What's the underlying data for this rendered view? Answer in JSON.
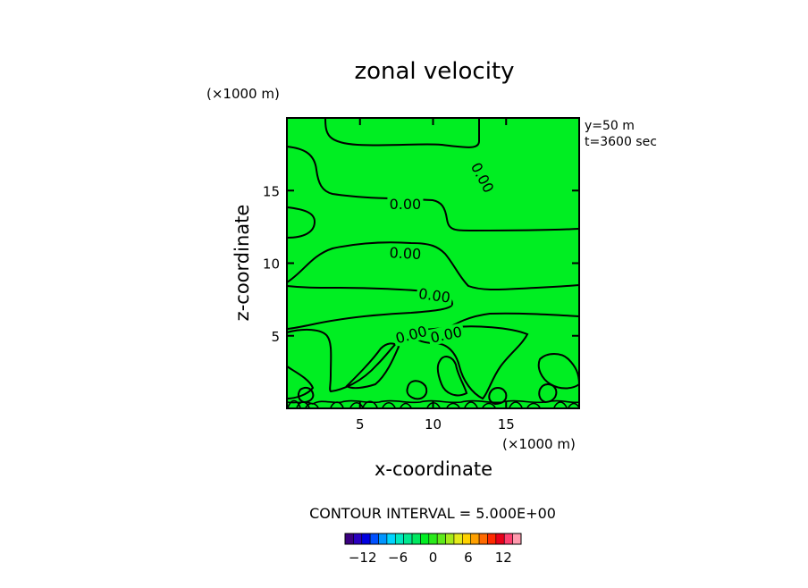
{
  "chart_data": {
    "type": "heatmap",
    "title": "zonal velocity",
    "xlabel": "x-coordinate",
    "ylabel": "z-coordinate",
    "x_unit": "(×1000 m)",
    "y_unit": "(×1000 m)",
    "xlim": [
      0,
      20
    ],
    "ylim": [
      0,
      20
    ],
    "x_ticks": [
      "5",
      "10",
      "15"
    ],
    "y_ticks": [
      "5",
      "10",
      "15"
    ],
    "annotations": [
      "y=50 m",
      "t=3600 sec"
    ],
    "fill_color": "#00ee22",
    "contour_line_color": "#000000",
    "contour_labels": [
      {
        "text": "0.00",
        "x": 13.4,
        "z": 15.9,
        "angle": 62
      },
      {
        "text": "0.00",
        "x": 8.1,
        "z": 14.1,
        "angle": 0
      },
      {
        "text": "0.00",
        "x": 8.1,
        "z": 10.7,
        "angle": 3
      },
      {
        "text": "0.00",
        "x": 10.1,
        "z": 7.8,
        "angle": 8
      },
      {
        "text": "0.00",
        "x": 8.5,
        "z": 5.1,
        "angle": -15
      },
      {
        "text": "0.00",
        "x": 10.9,
        "z": 5.1,
        "angle": -12
      }
    ],
    "contour_interval_text": "CONTOUR INTERVAL = 5.000E+00",
    "colorbar": {
      "colors": [
        "#3a0080",
        "#2a00c0",
        "#0000e0",
        "#0050ff",
        "#0095ff",
        "#00d4ff",
        "#00e8c0",
        "#00e890",
        "#00e860",
        "#00ee22",
        "#2aea1a",
        "#5eea1a",
        "#a6ea1a",
        "#e4ea1a",
        "#ffd200",
        "#ffa000",
        "#ff6a00",
        "#ff2a00",
        "#e8001a",
        "#ff4070",
        "#ff9aae"
      ],
      "tick_labels": [
        "-12",
        "-6",
        "0",
        "6",
        "12"
      ],
      "tick_values": [
        -12,
        -6,
        0,
        6,
        12
      ],
      "range": [
        -15,
        15
      ]
    }
  }
}
